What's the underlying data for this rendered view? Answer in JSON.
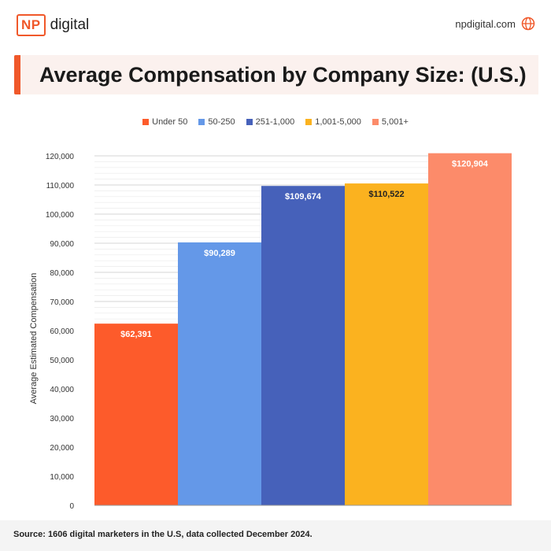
{
  "header": {
    "logo_mark": "NP",
    "logo_word": "digital",
    "site": "npdigital.com",
    "globe_icon": "globe-icon"
  },
  "title": "Average Compensation by Company Size: (U.S.)",
  "footer": {
    "source": "Source: 1606 digital marketers in the U.S, data collected December 2024."
  },
  "colors": {
    "accent": "#f0582a",
    "series": [
      "#fd5b2b",
      "#6498e8",
      "#4661ba",
      "#fbb21f",
      "#fc8b6a"
    ]
  },
  "chart_data": {
    "type": "bar",
    "ylabel": "Average Estimated Compensation",
    "ylim": [
      0,
      120000
    ],
    "yticks": [
      "0",
      "10,000",
      "20,000",
      "30,000",
      "40,000",
      "50,000",
      "60,000",
      "70,000",
      "80,000",
      "90,000",
      "100,000",
      "110,000",
      "120,000"
    ],
    "grid": true,
    "legend_position": "top",
    "categories": [
      "Under 50",
      "50-250",
      "251-1,000",
      "1,001-5,000",
      "5,001+"
    ],
    "values": [
      62391,
      90289,
      109674,
      110522,
      120904
    ],
    "data_labels": [
      "$62,391",
      "$90,289",
      "$109,674",
      "$110,522",
      "$120,904"
    ]
  }
}
